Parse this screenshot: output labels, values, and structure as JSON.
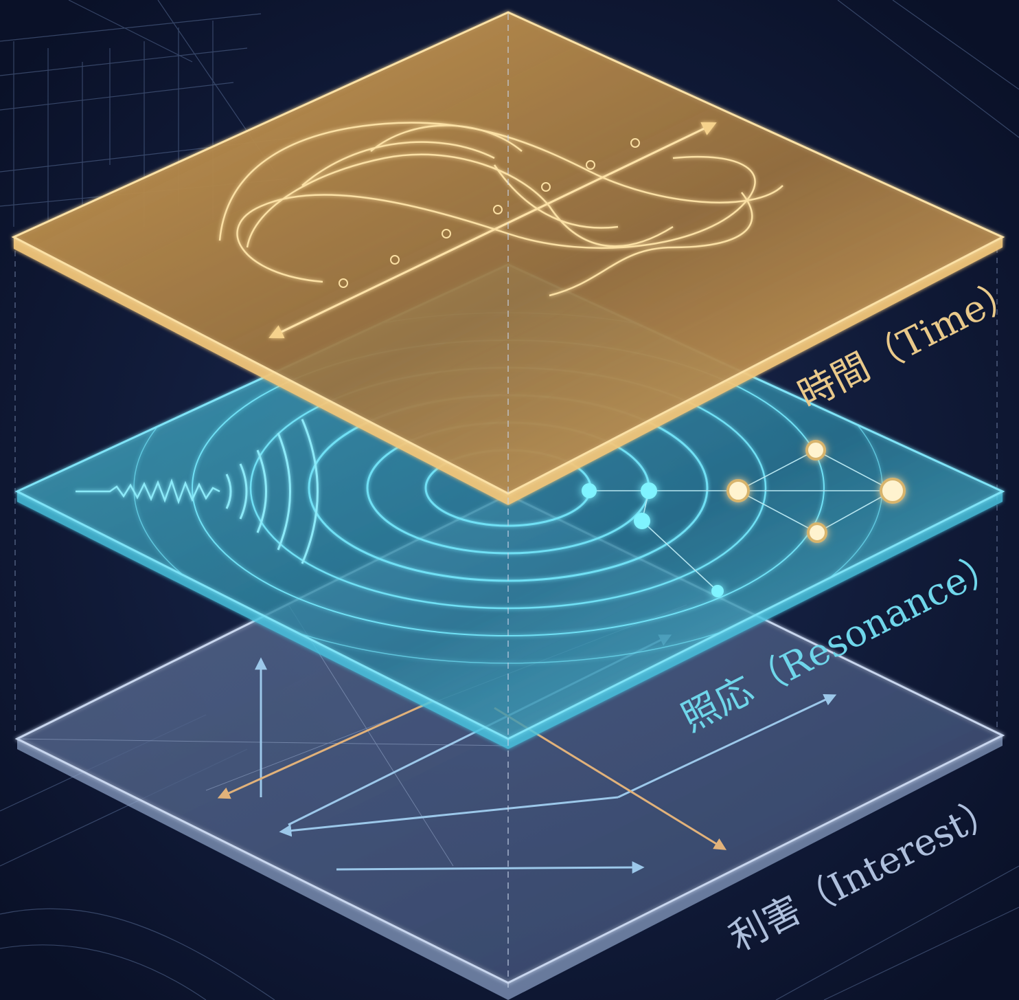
{
  "diagram": {
    "layers": [
      {
        "id": "time",
        "label": "時間（Time）",
        "color": "#f0c071"
      },
      {
        "id": "resonance",
        "label": "照応（Resonance）",
        "color": "#5fd3ec"
      },
      {
        "id": "interest",
        "label": "利害（Interest）",
        "color": "#a9bedd"
      }
    ],
    "colors": {
      "background": "#0d1530",
      "blueprint_lines": "#5a6f98",
      "arrow_orange": "#e2b27a",
      "arrow_blue": "#9cc8ea"
    }
  }
}
